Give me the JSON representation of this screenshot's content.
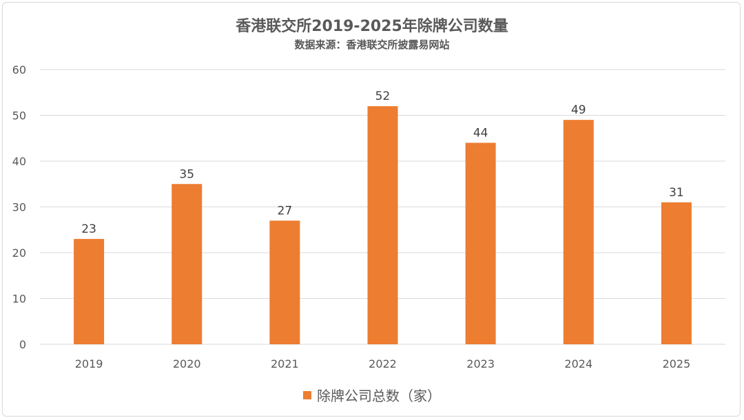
{
  "chart_data": {
    "type": "bar",
    "title": "香港联交所2019-2025年除牌公司数量",
    "subtitle": "数据来源：香港联交所披露易网站",
    "categories": [
      "2019",
      "2020",
      "2021",
      "2022",
      "2023",
      "2024",
      "2025"
    ],
    "series": [
      {
        "name": "除牌公司总数（家）",
        "values": [
          23,
          35,
          27,
          52,
          44,
          49,
          31
        ]
      }
    ],
    "ylim": [
      0,
      60
    ],
    "yticks": [
      0,
      10,
      20,
      30,
      40,
      50,
      60
    ],
    "grid": true,
    "legend": "bottom",
    "data_labels": true,
    "bar_color": "#ed7d31"
  }
}
